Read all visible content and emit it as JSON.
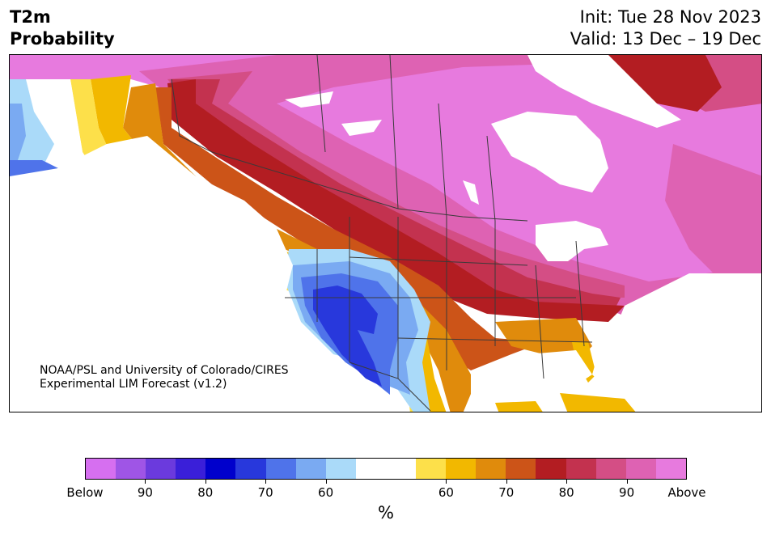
{
  "header": {
    "title_line1": "T2m",
    "title_line2": "Probability",
    "init": "Init: Tue 28 Nov 2023",
    "valid": "Valid: 13 Dec – 19 Dec"
  },
  "credit": {
    "line1": "NOAA/PSL and University of Colorado/CIRES",
    "line2": "Experimental LIM Forecast (v1.2)"
  },
  "colorbar": {
    "colors": [
      "#d66ff0",
      "#9f55e6",
      "#6b3add",
      "#3a1fd9",
      "#0000cc",
      "#2838dc",
      "#4f73ea",
      "#7aaaf2",
      "#aadaf9",
      "#ffffff",
      "#ffffff",
      "#fde04a",
      "#f2b800",
      "#e08b0c",
      "#cc5418",
      "#b31d22",
      "#c3324f",
      "#d44e85",
      "#de62b3",
      "#e77ade"
    ],
    "labels": [
      "Below",
      "90",
      "80",
      "70",
      "60",
      "60",
      "70",
      "80",
      "90",
      "Above"
    ],
    "unit": "%"
  },
  "map": {
    "region": "North America",
    "colors": {
      "above_extreme": "#e77ade",
      "above_90": "#de62b3",
      "above_85": "#d44e85",
      "above_80": "#c3324f",
      "above_75": "#b31d22",
      "above_70": "#cc5418",
      "above_65": "#e08b0c",
      "above_60": "#f2b800",
      "above_55": "#fde04a",
      "below_55": "#aadaf9",
      "below_60": "#7aaaf2",
      "below_65": "#4f73ea",
      "below_70": "#2838dc",
      "border": "#3a3a3a"
    }
  }
}
